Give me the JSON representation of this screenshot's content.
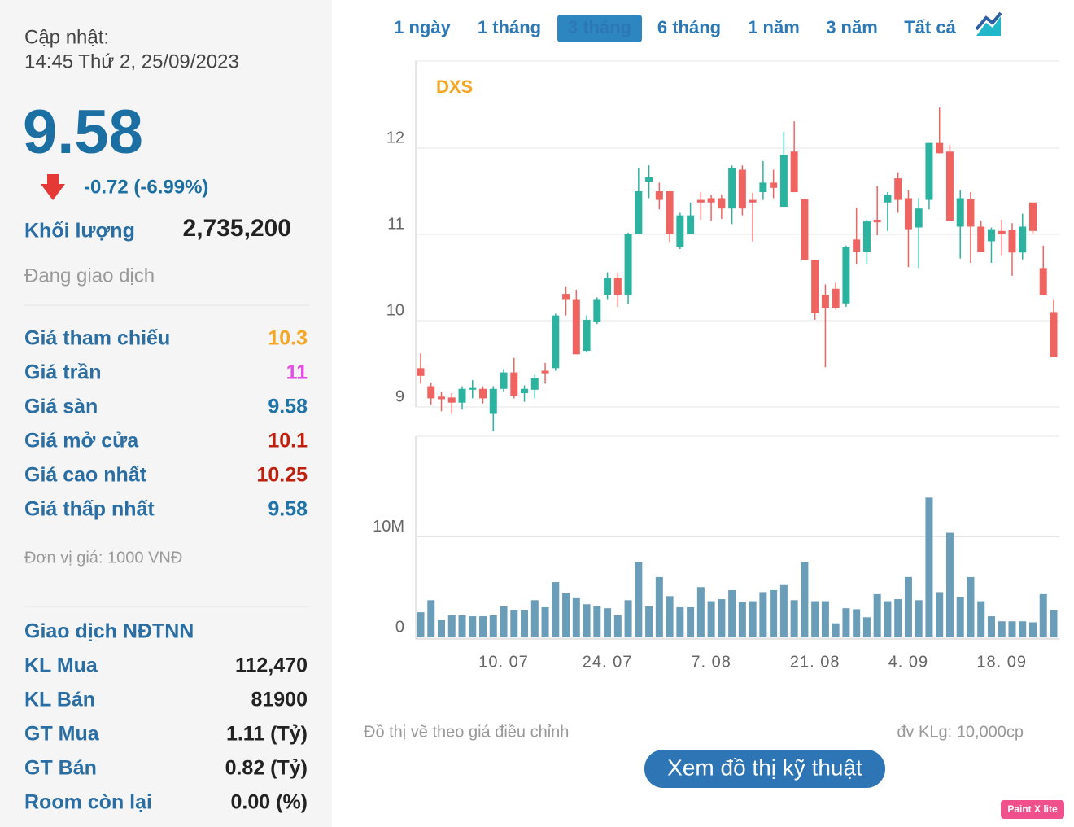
{
  "sidebar": {
    "updated_label": "Cập nhật:",
    "updated_time": "14:45 Thứ 2, 25/09/2023",
    "price": "9.58",
    "change": "-0.72 (-6.99%)",
    "volume_label": "Khối lượng",
    "volume": "2,735,200",
    "status": "Đang giao dịch",
    "stats": [
      {
        "label": "Giá tham chiếu",
        "value": "10.3",
        "color": "#f5a623"
      },
      {
        "label": "Giá trần",
        "value": "11",
        "color": "#e64ce6"
      },
      {
        "label": "Giá sàn",
        "value": "9.58",
        "color": "#1e73a8"
      },
      {
        "label": "Giá mở cửa",
        "value": "10.1",
        "color": "#c0210f"
      },
      {
        "label": "Giá cao nhất",
        "value": "10.25",
        "color": "#c0210f"
      },
      {
        "label": "Giá thấp nhất",
        "value": "9.58",
        "color": "#1e73a8"
      }
    ],
    "unit": "Đơn vị giá: 1000 VNĐ",
    "foreign_title": "Giao dịch NĐTNN",
    "foreign": [
      {
        "label": "KL Mua",
        "value": "112,470"
      },
      {
        "label": "KL Bán",
        "value": "81900"
      },
      {
        "label": "GT Mua",
        "value": "1.11 (Tỷ)"
      },
      {
        "label": "GT Bán",
        "value": "0.82 (Tỷ)"
      },
      {
        "label": "Room còn lại",
        "value": "0.00 (%)"
      }
    ]
  },
  "tabs": [
    "1 ngày",
    "1 tháng",
    "3 tháng",
    "6 tháng",
    "1 năm",
    "3 năm",
    "Tất cả"
  ],
  "active_tab": 2,
  "chart_data": {
    "type": "candlestick",
    "title": "DXS",
    "categories": [
      null,
      null,
      null,
      null,
      null,
      null,
      null,
      null,
      "10. 07",
      null,
      null,
      null,
      null,
      null,
      null,
      null,
      null,
      null,
      "24. 07",
      null,
      null,
      null,
      null,
      null,
      null,
      null,
      null,
      null,
      "7. 08",
      null,
      null,
      null,
      null,
      null,
      null,
      null,
      null,
      null,
      "21. 08",
      null,
      null,
      null,
      null,
      null,
      null,
      null,
      null,
      "4. 09",
      null,
      null,
      null,
      null,
      null,
      null,
      null,
      null,
      "18. 09",
      null,
      null,
      null,
      null,
      null
    ],
    "open": [
      9.45,
      9.24,
      9.12,
      9.11,
      9.05,
      9.2,
      9.21,
      8.92,
      9.21,
      9.4,
      9.16,
      9.2,
      9.42,
      9.45,
      10.31,
      10.25,
      9.65,
      9.99,
      10.3,
      10.5,
      10.3,
      11.0,
      11.61,
      11.5,
      11.5,
      10.85,
      11.0,
      11.4,
      11.42,
      11.42,
      11.3,
      11.75,
      11.4,
      11.49,
      11.6,
      11.32,
      11.96,
      11.41,
      10.7,
      10.3,
      10.37,
      10.2,
      10.94,
      10.8,
      11.17,
      11.37,
      11.65,
      11.42,
      11.08,
      11.4,
      12.06,
      11.96,
      11.09,
      11.41,
      11.09,
      10.92,
      11.04,
      11.05,
      10.79,
      11.37,
      10.61,
      10.1
    ],
    "high": [
      9.62,
      9.28,
      9.18,
      9.16,
      9.24,
      9.31,
      9.24,
      9.24,
      9.44,
      9.57,
      9.25,
      9.37,
      9.51,
      10.08,
      10.4,
      10.36,
      10.06,
      10.27,
      10.56,
      10.56,
      11.02,
      11.77,
      11.8,
      11.6,
      11.5,
      11.25,
      11.37,
      11.49,
      11.46,
      11.46,
      11.8,
      11.8,
      11.48,
      11.85,
      11.75,
      12.19,
      12.31,
      11.41,
      10.7,
      10.42,
      10.44,
      10.87,
      11.31,
      11.17,
      11.56,
      11.49,
      11.72,
      11.51,
      11.42,
      12.06,
      12.47,
      12.04,
      11.51,
      11.49,
      11.16,
      11.08,
      11.17,
      11.13,
      11.24,
      11.37,
      10.87,
      10.25
    ],
    "low": [
      9.27,
      9.03,
      8.95,
      8.92,
      8.97,
      9.1,
      9.04,
      8.72,
      9.18,
      9.1,
      9.06,
      9.1,
      9.27,
      9.42,
      10.06,
      9.61,
      9.63,
      9.96,
      10.25,
      10.16,
      10.19,
      11.0,
      11.42,
      11.29,
      10.91,
      10.83,
      11.0,
      11.17,
      11.16,
      11.18,
      11.12,
      11.22,
      10.92,
      11.4,
      11.42,
      11.32,
      11.49,
      10.7,
      10.01,
      9.46,
      10.13,
      10.16,
      10.66,
      10.66,
      10.99,
      11.04,
      11.25,
      10.62,
      10.61,
      11.29,
      11.94,
      11.16,
      10.72,
      10.67,
      10.8,
      10.67,
      10.76,
      10.52,
      10.71,
      11.0,
      10.3,
      9.58
    ],
    "close": [
      9.36,
      9.1,
      9.09,
      9.05,
      9.21,
      9.22,
      9.1,
      9.21,
      9.4,
      9.13,
      9.21,
      9.33,
      9.39,
      10.06,
      10.25,
      9.61,
      10.01,
      10.25,
      10.5,
      10.3,
      11.0,
      11.5,
      11.66,
      11.4,
      11.0,
      11.22,
      11.22,
      11.37,
      11.37,
      11.3,
      11.77,
      11.3,
      11.37,
      11.6,
      11.54,
      11.92,
      11.49,
      10.7,
      10.09,
      10.15,
      10.15,
      10.85,
      10.8,
      11.15,
      11.14,
      11.46,
      11.4,
      11.06,
      11.3,
      12.06,
      11.94,
      11.16,
      11.42,
      11.09,
      10.8,
      11.06,
      11.0,
      10.79,
      11.09,
      11.04,
      10.3,
      9.58
    ],
    "volume": [
      2500000,
      3700000,
      1700000,
      2200000,
      2200000,
      2100000,
      2100000,
      2200000,
      3100000,
      2700000,
      2700000,
      3700000,
      3000000,
      5500000,
      4400000,
      3900000,
      3300000,
      3100000,
      2900000,
      2200000,
      3700000,
      7500000,
      3100000,
      6000000,
      4100000,
      3000000,
      3000000,
      5000000,
      3600000,
      3800000,
      4700000,
      3500000,
      3600000,
      4500000,
      4700000,
      5200000,
      3700000,
      7500000,
      3600000,
      3600000,
      1400000,
      2900000,
      2800000,
      2000000,
      4300000,
      3600000,
      3800000,
      6000000,
      3700000,
      13900000,
      4500000,
      10400000,
      4000000,
      6000000,
      3600000,
      2100000,
      1600000,
      1600000,
      1600000,
      1500000,
      4300000,
      2700000
    ],
    "up_color": "#2bb3a0",
    "down_color": "#ef6461",
    "volume_color": "#6a9db8",
    "ylim": [
      9,
      13
    ],
    "yticks": [
      9,
      10,
      11,
      12
    ],
    "y2lim": [
      0,
      20000000
    ],
    "y2ticks": [
      0,
      {
        "value": 10000000,
        "label": "10M"
      }
    ],
    "grid": true
  },
  "note_left": "Đồ thị vẽ theo giá điều chỉnh",
  "note_right": "đv KLg: 10,000cp",
  "button": "Xem đồ thị kỹ thuật",
  "badge": "Paint X lite"
}
